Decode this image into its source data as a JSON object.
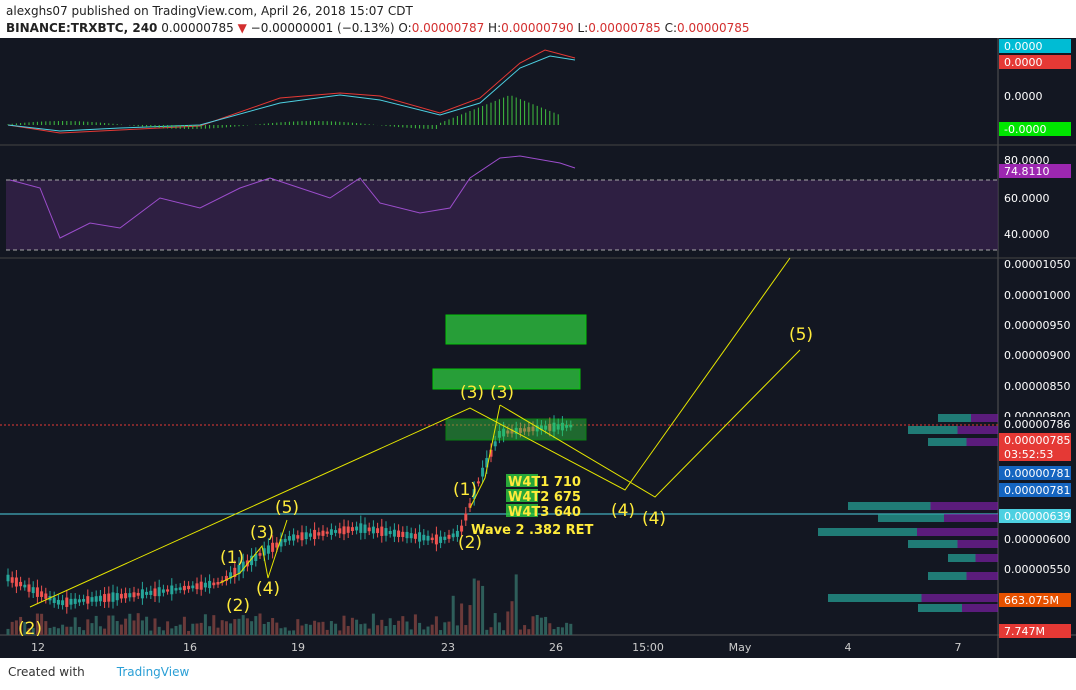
{
  "header": {
    "author": "alexghs07",
    "published": "published on TradingView.com, April 26, 2018 15:07 CDT",
    "symbol": "BINANCE:TRXBTC, 240",
    "price": "0.00000785",
    "change": "−0.00000001 (−0.13%)",
    "ohlc": [
      {
        "label": "O:",
        "value": "0.00000787"
      },
      {
        "label": "H:",
        "value": "0.00000790"
      },
      {
        "label": "L:",
        "value": "0.00000785"
      },
      {
        "label": "C:",
        "value": "0.00000785"
      }
    ]
  },
  "macd_axis": [
    "0.0000",
    "0.0000",
    "0.0000",
    "-0.0000"
  ],
  "rsi_axis": [
    "80.0000",
    "74.8110",
    "60.0000",
    "40.0000"
  ],
  "price_axis": [
    "0.00001050",
    "0.00001000",
    "0.00000950",
    "0.00000900",
    "0.00000850",
    "0.00000800",
    "0.00000786",
    "0.00000785",
    "03:52:53",
    "0.00000781",
    "0.00000781",
    "0.00000639",
    "0.00000600",
    "0.00000550",
    "663.075M",
    "7.747M"
  ],
  "time_axis": [
    "12",
    "16",
    "19",
    "23",
    "26",
    "15:00",
    "May",
    "4",
    "7"
  ],
  "waves": [
    "(2)",
    "(1)",
    "(2)",
    "(3)",
    "(4)",
    "(5)",
    "(1)",
    "(2)",
    "(3)",
    "(3)",
    "(4)",
    "(4)",
    "(5)"
  ],
  "targets": [
    "W4T1 710",
    "W4T2 675",
    "W4T3 640",
    "Wave 2 .382 RET"
  ],
  "footer": {
    "created": "Created with",
    "brand": "TradingView"
  }
}
